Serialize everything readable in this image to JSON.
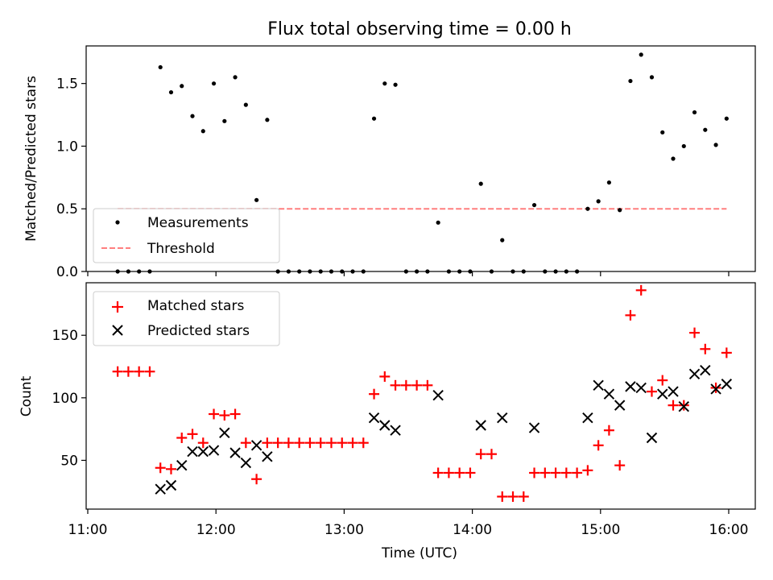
{
  "chart_data": [
    {
      "type": "scatter",
      "title": "Flux total observing time = 0.00 h",
      "xlabel": "",
      "ylabel": "Matched/Predicted stars",
      "xlim": [
        "11:00",
        "16:00"
      ],
      "ylim": [
        0,
        1.8
      ],
      "yticks": [
        "0.0",
        "0.5",
        "1.0",
        "1.5"
      ],
      "legend": {
        "placement": "lower-left",
        "entries": [
          "Measurements",
          "Threshold"
        ]
      },
      "series": [
        {
          "name": "Measurements",
          "color": "#000000",
          "marker": "dot",
          "points": [
            [
              "11:14",
              0
            ],
            [
              "11:19",
              0
            ],
            [
              "11:24",
              0
            ],
            [
              "11:29",
              0
            ],
            [
              "11:34",
              1.63
            ],
            [
              "11:39",
              1.43
            ],
            [
              "11:44",
              1.48
            ],
            [
              "11:49",
              1.24
            ],
            [
              "11:54",
              1.12
            ],
            [
              "11:59",
              1.5
            ],
            [
              "12:04",
              1.2
            ],
            [
              "12:09",
              1.55
            ],
            [
              "12:14",
              1.33
            ],
            [
              "12:19",
              0.57
            ],
            [
              "12:24",
              1.21
            ],
            [
              "12:29",
              0
            ],
            [
              "12:34",
              0
            ],
            [
              "12:39",
              0
            ],
            [
              "12:44",
              0
            ],
            [
              "12:49",
              0
            ],
            [
              "12:54",
              0
            ],
            [
              "12:59",
              0
            ],
            [
              "13:04",
              0
            ],
            [
              "13:09",
              0
            ],
            [
              "13:14",
              1.22
            ],
            [
              "13:19",
              1.5
            ],
            [
              "13:24",
              1.49
            ],
            [
              "13:29",
              0
            ],
            [
              "13:34",
              0
            ],
            [
              "13:39",
              0
            ],
            [
              "13:44",
              0.39
            ],
            [
              "13:49",
              0
            ],
            [
              "13:54",
              0
            ],
            [
              "13:59",
              0
            ],
            [
              "14:04",
              0.7
            ],
            [
              "14:09",
              0
            ],
            [
              "14:14",
              0.25
            ],
            [
              "14:19",
              0
            ],
            [
              "14:24",
              0
            ],
            [
              "14:29",
              0.53
            ],
            [
              "14:34",
              0
            ],
            [
              "14:39",
              0
            ],
            [
              "14:44",
              0
            ],
            [
              "14:49",
              0
            ],
            [
              "14:54",
              0.5
            ],
            [
              "14:59",
              0.56
            ],
            [
              "15:04",
              0.71
            ],
            [
              "15:09",
              0.49
            ],
            [
              "15:14",
              1.52
            ],
            [
              "15:19",
              1.73
            ],
            [
              "15:24",
              1.55
            ],
            [
              "15:29",
              1.11
            ],
            [
              "15:34",
              0.9
            ],
            [
              "15:39",
              1.0
            ],
            [
              "15:44",
              1.27
            ],
            [
              "15:49",
              1.13
            ],
            [
              "15:54",
              1.01
            ],
            [
              "15:59",
              1.22
            ]
          ]
        },
        {
          "name": "Threshold",
          "color": "#ff7f7f",
          "style": "dashed",
          "points": [
            [
              "11:14",
              0.5
            ],
            [
              "15:59",
              0.5
            ]
          ]
        }
      ]
    },
    {
      "type": "scatter",
      "title": "",
      "xlabel": "Time (UTC)",
      "ylabel": "Count",
      "xlim": [
        "11:00",
        "16:00"
      ],
      "ylim": [
        11,
        192
      ],
      "xticks": [
        "11:00",
        "12:00",
        "13:00",
        "14:00",
        "15:00",
        "16:00"
      ],
      "yticks": [
        "50",
        "100",
        "150"
      ],
      "legend": {
        "placement": "upper-left",
        "entries": [
          "Matched stars",
          "Predicted stars"
        ]
      },
      "series": [
        {
          "name": "Matched stars",
          "color": "#ff0000",
          "marker": "plus",
          "points": [
            [
              "11:14",
              121
            ],
            [
              "11:19",
              121
            ],
            [
              "11:24",
              121
            ],
            [
              "11:29",
              121
            ],
            [
              "11:34",
              44
            ],
            [
              "11:39",
              43
            ],
            [
              "11:44",
              68
            ],
            [
              "11:49",
              71
            ],
            [
              "11:54",
              64
            ],
            [
              "11:59",
              87
            ],
            [
              "12:04",
              86
            ],
            [
              "12:09",
              87
            ],
            [
              "12:14",
              64
            ],
            [
              "12:19",
              35
            ],
            [
              "12:24",
              64
            ],
            [
              "12:29",
              64
            ],
            [
              "12:34",
              64
            ],
            [
              "12:39",
              64
            ],
            [
              "12:44",
              64
            ],
            [
              "12:49",
              64
            ],
            [
              "12:54",
              64
            ],
            [
              "12:59",
              64
            ],
            [
              "13:04",
              64
            ],
            [
              "13:09",
              64
            ],
            [
              "13:14",
              103
            ],
            [
              "13:19",
              117
            ],
            [
              "13:24",
              110
            ],
            [
              "13:29",
              110
            ],
            [
              "13:34",
              110
            ],
            [
              "13:39",
              110
            ],
            [
              "13:44",
              40
            ],
            [
              "13:49",
              40
            ],
            [
              "13:54",
              40
            ],
            [
              "13:59",
              40
            ],
            [
              "14:04",
              55
            ],
            [
              "14:09",
              55
            ],
            [
              "14:14",
              21
            ],
            [
              "14:19",
              21
            ],
            [
              "14:24",
              21
            ],
            [
              "14:29",
              40
            ],
            [
              "14:34",
              40
            ],
            [
              "14:39",
              40
            ],
            [
              "14:44",
              40
            ],
            [
              "14:49",
              40
            ],
            [
              "14:54",
              42
            ],
            [
              "14:59",
              62
            ],
            [
              "15:04",
              74
            ],
            [
              "15:09",
              46
            ],
            [
              "15:14",
              166
            ],
            [
              "15:19",
              186
            ],
            [
              "15:24",
              105
            ],
            [
              "15:29",
              114
            ],
            [
              "15:34",
              94
            ],
            [
              "15:39",
              94
            ],
            [
              "15:44",
              152
            ],
            [
              "15:49",
              139
            ],
            [
              "15:54",
              108
            ],
            [
              "15:59",
              136
            ]
          ]
        },
        {
          "name": "Predicted stars",
          "color": "#000000",
          "marker": "x",
          "points": [
            [
              "11:34",
              27
            ],
            [
              "11:39",
              30
            ],
            [
              "11:44",
              46
            ],
            [
              "11:49",
              57
            ],
            [
              "11:54",
              57
            ],
            [
              "11:59",
              58
            ],
            [
              "12:04",
              72
            ],
            [
              "12:09",
              56
            ],
            [
              "12:14",
              48
            ],
            [
              "12:19",
              62
            ],
            [
              "12:24",
              53
            ],
            [
              "13:14",
              84
            ],
            [
              "13:19",
              78
            ],
            [
              "13:24",
              74
            ],
            [
              "13:44",
              102
            ],
            [
              "14:04",
              78
            ],
            [
              "14:14",
              84
            ],
            [
              "14:29",
              76
            ],
            [
              "14:54",
              84
            ],
            [
              "14:59",
              110
            ],
            [
              "15:04",
              103
            ],
            [
              "15:09",
              94
            ],
            [
              "15:14",
              109
            ],
            [
              "15:19",
              108
            ],
            [
              "15:24",
              68
            ],
            [
              "15:29",
              103
            ],
            [
              "15:34",
              105
            ],
            [
              "15:39",
              93
            ],
            [
              "15:44",
              119
            ],
            [
              "15:49",
              122
            ],
            [
              "15:54",
              107
            ],
            [
              "15:59",
              111
            ]
          ]
        }
      ]
    }
  ]
}
